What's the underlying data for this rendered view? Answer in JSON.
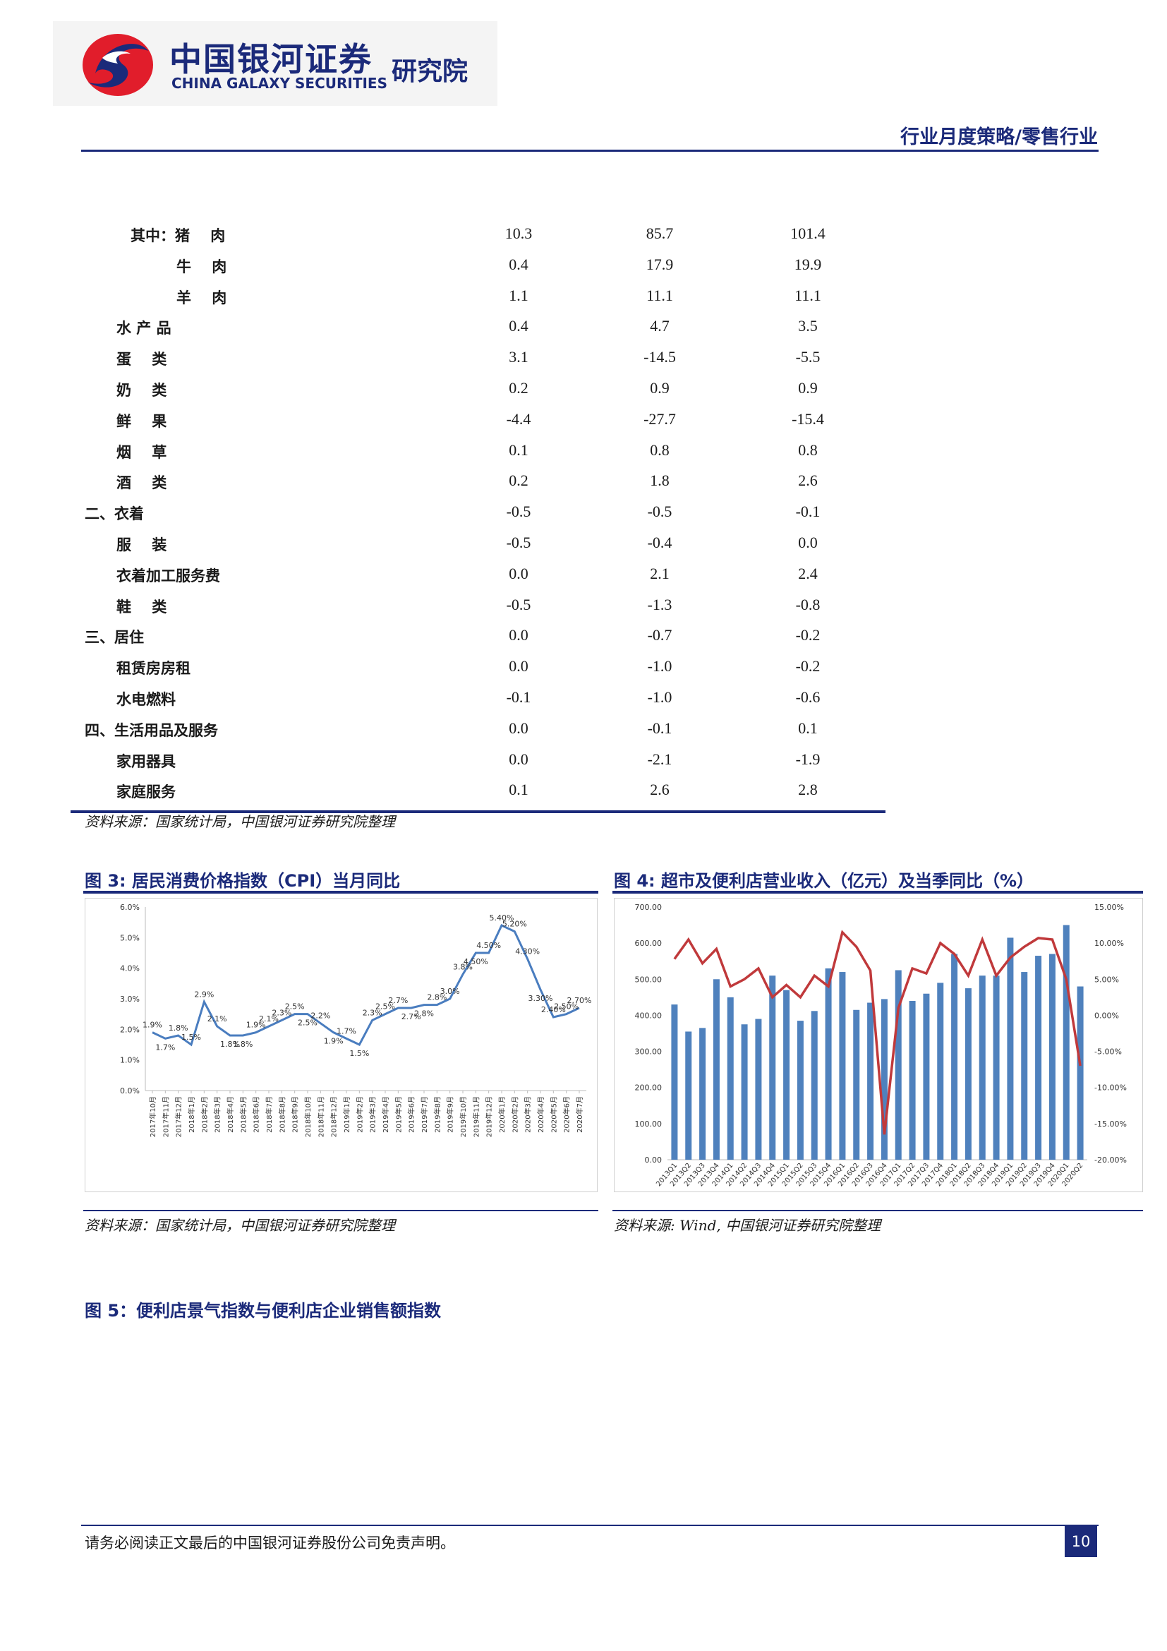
{
  "header": {
    "logo_cn": "中国银河证券",
    "logo_en": "CHINA GALAXY SECURITIES",
    "logo_sub": "研究院",
    "section_title": "行业月度策略/零售行业"
  },
  "table": {
    "rows": [
      {
        "label": "其中：猪    肉",
        "v1": "10.3",
        "v2": "85.7",
        "v3": "101.4",
        "indent": 2
      },
      {
        "label": "牛    肉",
        "v1": "0.4",
        "v2": "17.9",
        "v3": "19.9",
        "indent": 3
      },
      {
        "label": "羊    肉",
        "v1": "1.1",
        "v2": "11.1",
        "v3": "11.1",
        "indent": 3
      },
      {
        "label": "水 产 品",
        "v1": "0.4",
        "v2": "4.7",
        "v3": "3.5",
        "indent": 1
      },
      {
        "label": "蛋    类",
        "v1": "3.1",
        "v2": "-14.5",
        "v3": "-5.5",
        "indent": 1
      },
      {
        "label": "奶    类",
        "v1": "0.2",
        "v2": "0.9",
        "v3": "0.9",
        "indent": 1
      },
      {
        "label": "鲜    果",
        "v1": "-4.4",
        "v2": "-27.7",
        "v3": "-15.4",
        "indent": 1
      },
      {
        "label": "烟    草",
        "v1": "0.1",
        "v2": "0.8",
        "v3": "0.8",
        "indent": 1
      },
      {
        "label": "酒    类",
        "v1": "0.2",
        "v2": "1.8",
        "v3": "2.6",
        "indent": 1
      },
      {
        "label": "二、衣着",
        "v1": "-0.5",
        "v2": "-0.5",
        "v3": "-0.1",
        "indent": 0
      },
      {
        "label": "服    装",
        "v1": "-0.5",
        "v2": "-0.4",
        "v3": "0.0",
        "indent": 1
      },
      {
        "label": "衣着加工服务费",
        "v1": "0.0",
        "v2": "2.1",
        "v3": "2.4",
        "indent": 1
      },
      {
        "label": "鞋    类",
        "v1": "-0.5",
        "v2": "-1.3",
        "v3": "-0.8",
        "indent": 1
      },
      {
        "label": "三、居住",
        "v1": "0.0",
        "v2": "-0.7",
        "v3": "-0.2",
        "indent": 0
      },
      {
        "label": "租赁房房租",
        "v1": "0.0",
        "v2": "-1.0",
        "v3": "-0.2",
        "indent": 1
      },
      {
        "label": "水电燃料",
        "v1": "-0.1",
        "v2": "-1.0",
        "v3": "-0.6",
        "indent": 1
      },
      {
        "label": "四、生活用品及服务",
        "v1": "0.0",
        "v2": "-0.1",
        "v3": "0.1",
        "indent": 0
      },
      {
        "label": "家用器具",
        "v1": "0.0",
        "v2": "-2.1",
        "v3": "-1.9",
        "indent": 1
      },
      {
        "label": "家庭服务",
        "v1": "0.1",
        "v2": "2.6",
        "v3": "2.8",
        "indent": 1
      }
    ],
    "source": "资料来源：国家统计局，中国银河证券研究院整理"
  },
  "fig3": {
    "title": "图 3:  居民消费价格指数（CPI）当月同比",
    "source": "资料来源：国家统计局，中国银河证券研究院整理"
  },
  "fig4": {
    "title": "图 4:  超市及便利店营业收入（亿元）及当季同比（%）",
    "source": "资料来源:  Wind,  中国银河证券研究院整理"
  },
  "fig5": {
    "title": "图 5：便利店景气指数与便利店企业销售额指数"
  },
  "footer": {
    "disclaimer": "请务必阅读正文最后的中国银河证券股份公司免责声明。",
    "page": "10"
  },
  "colors": {
    "brand": "#1b2a7a",
    "line_blue": "#4a7dbf",
    "bar_blue": "#4f81bd",
    "line_red": "#c0393b"
  },
  "chart_data": [
    {
      "type": "line",
      "x": [
        "2017年10月",
        "2017年11月",
        "2017年12月",
        "2018年1月",
        "2018年2月",
        "2018年3月",
        "2018年4月",
        "2018年5月",
        "2018年6月",
        "2018年7月",
        "2018年8月",
        "2018年9月",
        "2018年10月",
        "2018年11月",
        "2018年12月",
        "2019年1月",
        "2019年2月",
        "2019年3月",
        "2019年4月",
        "2019年5月",
        "2019年6月",
        "2019年7月",
        "2019年8月",
        "2019年9月",
        "2019年10月",
        "2019年11月",
        "2019年12月",
        "2020年1月",
        "2020年2月",
        "2020年3月",
        "2020年4月",
        "2020年5月",
        "2020年6月",
        "2020年7月"
      ],
      "values": [
        1.9,
        1.7,
        1.8,
        1.5,
        2.9,
        2.1,
        1.8,
        1.8,
        1.9,
        2.1,
        2.3,
        2.5,
        2.5,
        2.2,
        1.9,
        1.7,
        1.5,
        2.3,
        2.5,
        2.7,
        2.7,
        2.8,
        2.8,
        3.0,
        3.8,
        4.5,
        4.5,
        5.4,
        5.2,
        4.3,
        3.3,
        2.4,
        2.5,
        2.7
      ],
      "point_labels": [
        "1.9%",
        "1.7%",
        "1.8%",
        "1.5%",
        "2.9%",
        "2.1%",
        "1.8%",
        "1.8%",
        "1.9%",
        "2.1%",
        "2.3%",
        "2.5%",
        "2.5%",
        "2.2%",
        "1.9%",
        "1.7%",
        "1.5%",
        "2.3%",
        "2.5%",
        "2.7%",
        "2.7%",
        "2.8%",
        "2.8%",
        "3.0%",
        "3.8%",
        "4.50%",
        "4.50%",
        "5.40%",
        "5.20%",
        "4.30%",
        "3.30%",
        "2.40%",
        "2.50%",
        "2.70%"
      ],
      "y_ticks": [
        "0.0%",
        "1.0%",
        "2.0%",
        "3.0%",
        "4.0%",
        "5.0%",
        "6.0%"
      ],
      "ylim": [
        0,
        6
      ]
    },
    {
      "type": "bar",
      "categories": [
        "2013Q1",
        "2013Q2",
        "2013Q3",
        "2013Q4",
        "2014Q1",
        "2014Q2",
        "2014Q3",
        "2014Q4",
        "2015Q1",
        "2015Q2",
        "2015Q3",
        "2015Q4",
        "2016Q1",
        "2016Q2",
        "2016Q3",
        "2016Q4",
        "2017Q1",
        "2017Q2",
        "2017Q3",
        "2017Q4",
        "2018Q1",
        "2018Q2",
        "2018Q3",
        "2018Q4",
        "2019Q1",
        "2019Q2",
        "2019Q3",
        "2019Q4",
        "2020Q1",
        "2020Q2"
      ],
      "series": [
        {
          "values": [
            430,
            355,
            365,
            500,
            450,
            375,
            390,
            510,
            470,
            385,
            412,
            530,
            520,
            415,
            435,
            445,
            525,
            440,
            460,
            490,
            570,
            475,
            510,
            510,
            615,
            520,
            565,
            570,
            650,
            480
          ]
        },
        {
          "values": [
            7.8,
            10.5,
            7.2,
            9.2,
            4.0,
            5.0,
            6.5,
            2.5,
            4.2,
            2.5,
            5.5,
            4.0,
            11.5,
            9.5,
            6.2,
            -16.5,
            1.0,
            6.5,
            5.8,
            10.0,
            8.5,
            5.5,
            10.5,
            5.5,
            8.0,
            9.5,
            10.7,
            10.5,
            5.0,
            -7.0
          ]
        }
      ],
      "y_ticks": [
        "0.00",
        "100.00",
        "200.00",
        "300.00",
        "400.00",
        "500.00",
        "600.00",
        "700.00"
      ],
      "y2_ticks": [
        "-20.00%",
        "-15.00%",
        "-10.00%",
        "-5.00%",
        "0.00%",
        "5.00%",
        "10.00%",
        "15.00%"
      ],
      "ylim": [
        0,
        700
      ],
      "y2lim": [
        -20,
        15
      ]
    }
  ]
}
